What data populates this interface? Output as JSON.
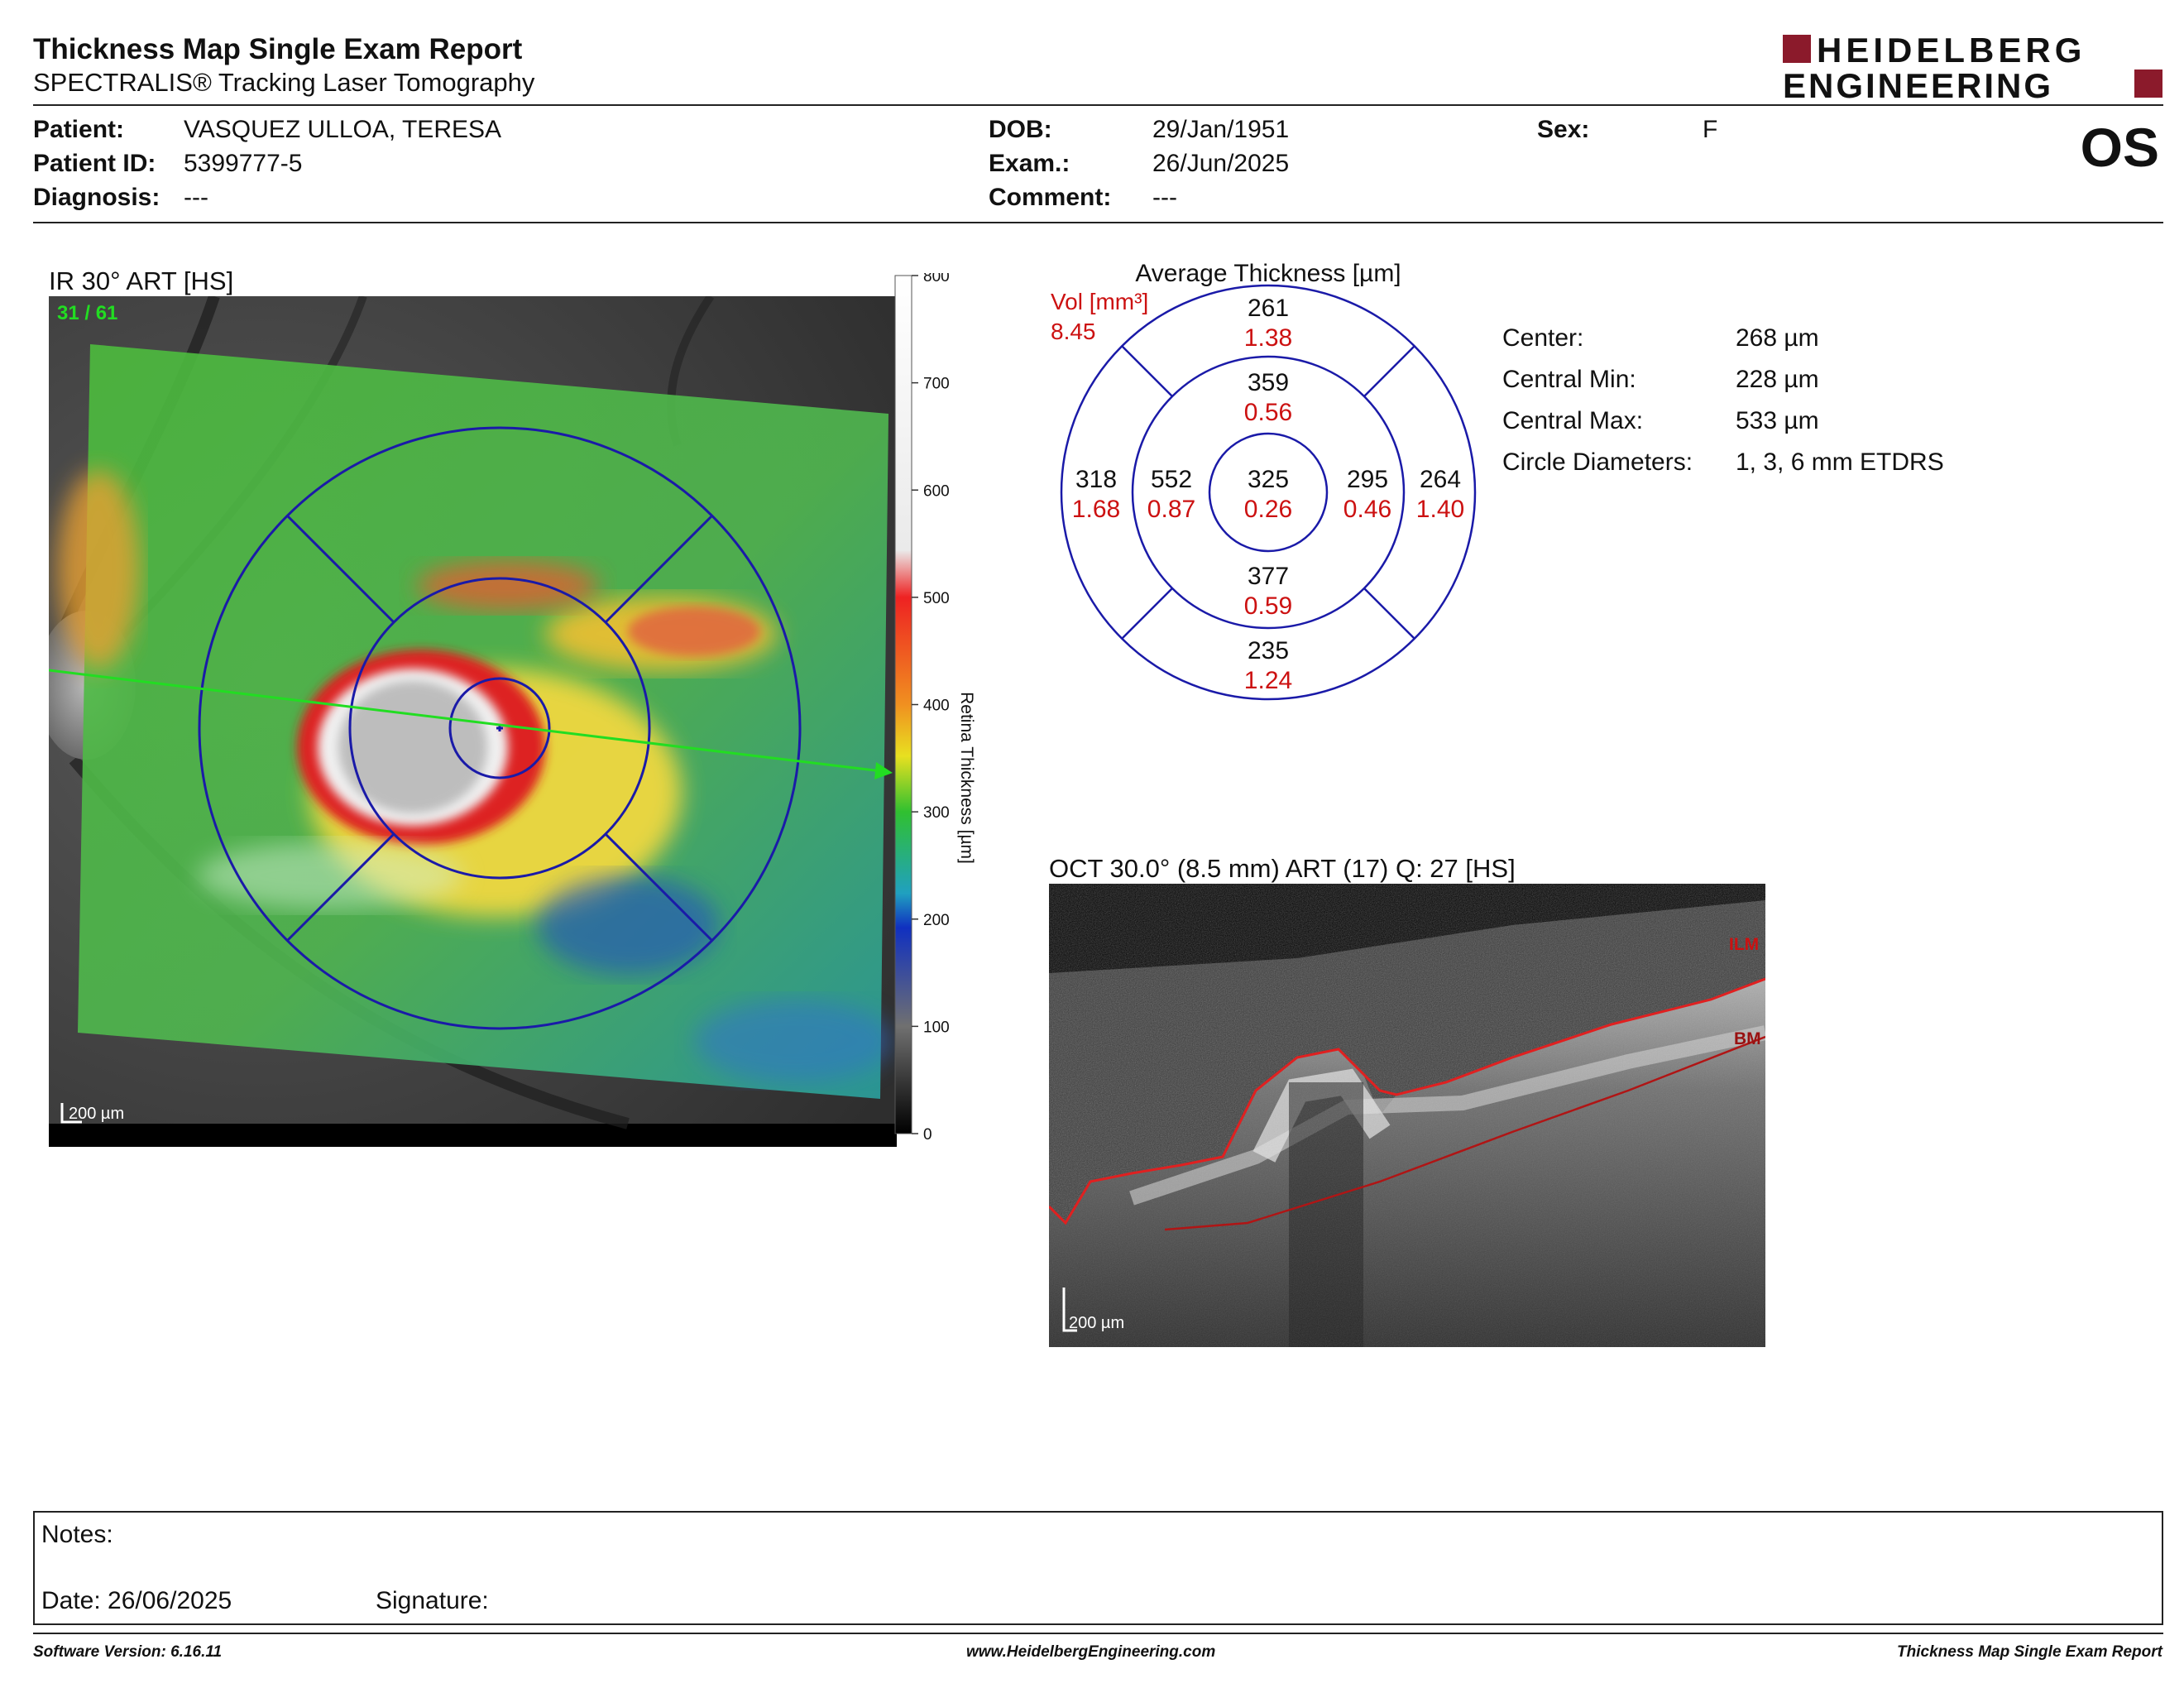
{
  "report": {
    "title": "Thickness Map Single Exam Report",
    "subtitle": "SPECTRALIS® Tracking Laser Tomography"
  },
  "logo": {
    "line1": "HEIDELBERG",
    "line2": "ENGINEERING",
    "accent_color": "#8b1a2b"
  },
  "patient": {
    "patient_label": "Patient:",
    "patient_value": "VASQUEZ ULLOA, TERESA",
    "id_label": "Patient ID:",
    "id_value": "5399777-5",
    "diagnosis_label": "Diagnosis:",
    "diagnosis_value": "---",
    "dob_label": "DOB:",
    "dob_value": "29/Jan/1951",
    "exam_label": "Exam.:",
    "exam_value": "26/Jun/2025",
    "comment_label": "Comment:",
    "comment_value": "---",
    "sex_label": "Sex:",
    "sex_value": "F",
    "eye": "OS"
  },
  "ir_image": {
    "title": "IR 30° ART [HS]",
    "frame_label": "31 / 61",
    "scale_label": "200 µm"
  },
  "colorbar": {
    "title": "Retina Thickness [µm]",
    "ticks": [
      "800",
      "700",
      "600",
      "500",
      "400",
      "300",
      "200",
      "100",
      "0"
    ]
  },
  "etdrs": {
    "title": "Average Thickness [µm]",
    "vol_label": "Vol [mm³]",
    "vol_total": "8.45",
    "sectors": {
      "outer_superior": {
        "thickness": "261",
        "volume": "1.38"
      },
      "inner_superior": {
        "thickness": "359",
        "volume": "0.56"
      },
      "outer_temporal": {
        "thickness": "318",
        "volume": "1.68"
      },
      "inner_temporal": {
        "thickness": "552",
        "volume": "0.87"
      },
      "center": {
        "thickness": "325",
        "volume": "0.26"
      },
      "inner_nasal": {
        "thickness": "295",
        "volume": "0.46"
      },
      "outer_nasal": {
        "thickness": "264",
        "volume": "1.40"
      },
      "inner_inferior": {
        "thickness": "377",
        "volume": "0.59"
      },
      "outer_inferior": {
        "thickness": "235",
        "volume": "1.24"
      }
    }
  },
  "stats": [
    {
      "label": "Center:",
      "value": "268 µm"
    },
    {
      "label": "Central Min:",
      "value": "228 µm"
    },
    {
      "label": "Central Max:",
      "value": "533 µm"
    },
    {
      "label": "Circle Diameters:",
      "value": "1, 3, 6 mm ETDRS"
    }
  ],
  "oct": {
    "title": "OCT 30.0° (8.5 mm) ART (17) Q: 27 [HS]",
    "ilm_label": "ILM",
    "bm_label": "BM",
    "scale_label": "200 µm"
  },
  "notes": {
    "notes_label": "Notes:",
    "date_label": "Date: 26/06/2025",
    "signature_label": "Signature:"
  },
  "footer": {
    "software": "Software Version: 6.16.11",
    "website": "www.HeidelbergEngineering.com",
    "report_name": "Thickness Map Single Exam Report"
  },
  "colors": {
    "etdrs_blue": "#1a1aa8",
    "volume_red": "#cc1111",
    "scan_green": "#22dd22"
  }
}
